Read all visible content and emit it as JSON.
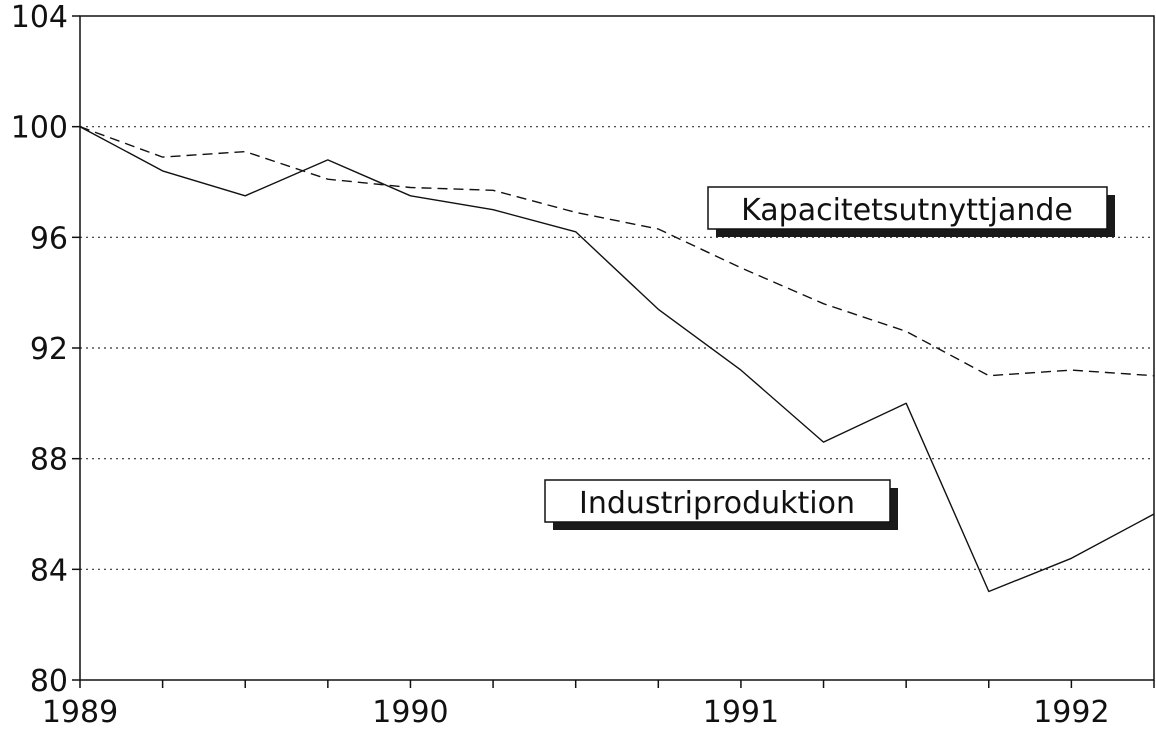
{
  "chart_data": {
    "type": "line",
    "title": "",
    "xlabel": "",
    "ylabel": "",
    "x": [
      1989.0,
      1989.25,
      1989.5,
      1989.75,
      1990.0,
      1990.25,
      1990.5,
      1990.75,
      1991.0,
      1991.25,
      1991.5,
      1991.75,
      1992.0,
      1992.25
    ],
    "xlim": [
      1989.0,
      1992.25
    ],
    "ylim": [
      80,
      104
    ],
    "x_ticks": [
      "1989",
      "1990",
      "1991",
      "1992"
    ],
    "y_ticks": [
      "80",
      "84",
      "88",
      "92",
      "96",
      "100",
      "104"
    ],
    "grid": "horizontal dotted at 84, 88, 92, 96, 100",
    "series": [
      {
        "name": "Industriproduktion",
        "style": "solid",
        "values": [
          100.0,
          98.4,
          97.5,
          98.8,
          97.5,
          97.0,
          96.2,
          93.4,
          91.2,
          88.6,
          90.0,
          83.2,
          84.4,
          86.0
        ]
      },
      {
        "name": "Kapacitetsutnyttjande",
        "style": "dashed",
        "values": [
          100.0,
          98.9,
          99.1,
          98.1,
          97.8,
          97.7,
          96.9,
          96.3,
          94.9,
          93.6,
          92.6,
          91.0,
          91.2,
          91.0
        ]
      }
    ]
  }
}
